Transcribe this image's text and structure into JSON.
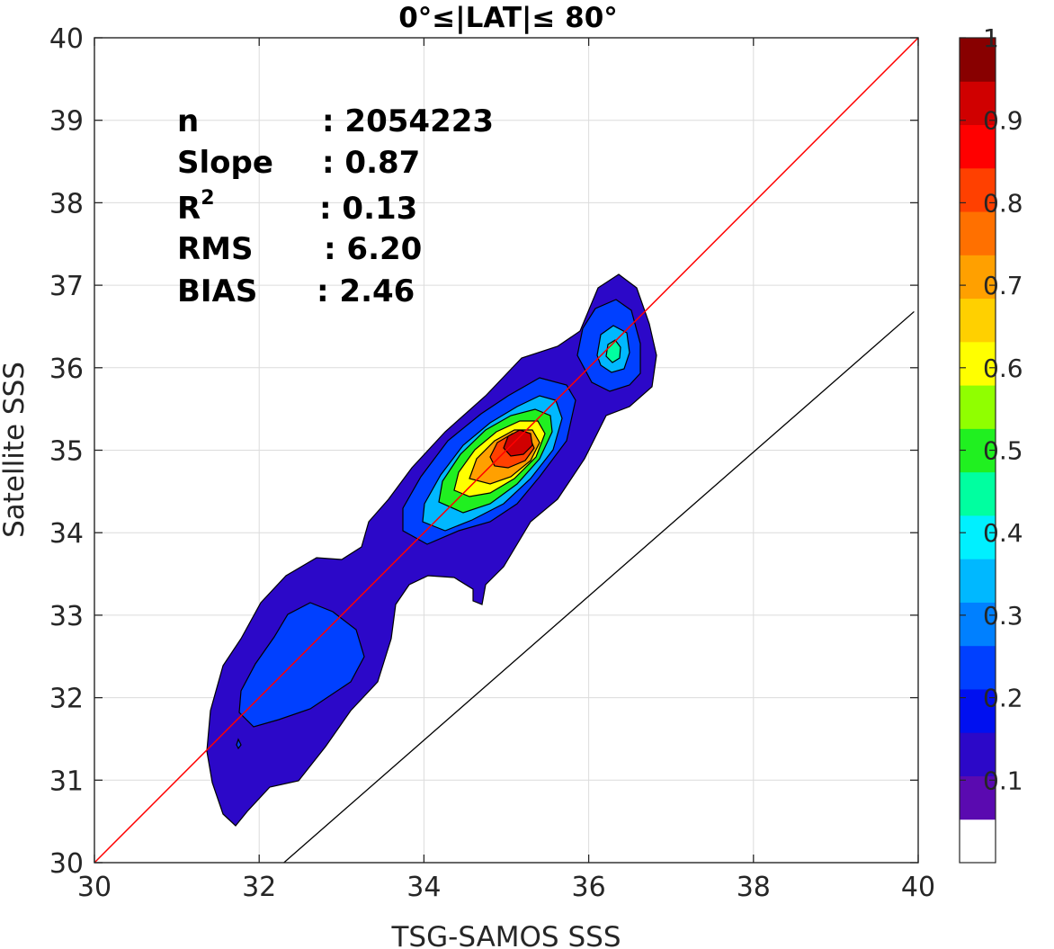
{
  "chart_data": {
    "type": "contour",
    "title": "0°≤|LAT|≤ 80°",
    "xlabel": "TSG-SAMOS SSS",
    "ylabel": "Satellite SSS",
    "xlim": [
      30,
      40
    ],
    "ylim": [
      30,
      40
    ],
    "xticks": [
      "30",
      "32",
      "34",
      "36",
      "38",
      "40"
    ],
    "yticks": [
      "30",
      "31",
      "32",
      "33",
      "34",
      "35",
      "36",
      "37",
      "38",
      "39",
      "40"
    ],
    "grid": true,
    "stats": [
      {
        "label": "n",
        "value": ": 2054223"
      },
      {
        "label": "Slope",
        "value": ": 0.87"
      },
      {
        "label": "R",
        "sup": "2",
        "value": ": 0.13"
      },
      {
        "label": "RMS",
        "value": ": 6.20"
      },
      {
        "label": "BIAS",
        "value": ": 2.46"
      }
    ],
    "lines": [
      {
        "desc": "one-to-one",
        "color": "#ff0000",
        "x": [
          30,
          40
        ],
        "y": [
          30,
          40
        ]
      },
      {
        "desc": "regression",
        "color": "#000000",
        "x": [
          32.3,
          39.95
        ],
        "y": [
          30,
          36.68
        ]
      }
    ],
    "density_peaks": [
      {
        "x": 35.15,
        "y": 35.15,
        "value": 0.97
      },
      {
        "x": 36.3,
        "y": 36.15,
        "value": 0.42
      },
      {
        "x": 32.5,
        "y": 32.4,
        "value": 0.22
      }
    ],
    "colorbar": {
      "ticks": [
        "0.1",
        "0.2",
        "0.3",
        "0.4",
        "0.5",
        "0.6",
        "0.7",
        "0.8",
        "0.9",
        "1"
      ],
      "range": [
        0,
        1
      ],
      "colors": [
        "#ffffff",
        "#5a0ab0",
        "#2c08c8",
        "#0010f0",
        "#0040ff",
        "#0080ff",
        "#00b8ff",
        "#00f0ff",
        "#00ffa0",
        "#20f020",
        "#90ff00",
        "#ffff00",
        "#ffd000",
        "#ffa000",
        "#ff7000",
        "#ff4000",
        "#ff0000",
        "#d00000",
        "#880000"
      ]
    }
  }
}
